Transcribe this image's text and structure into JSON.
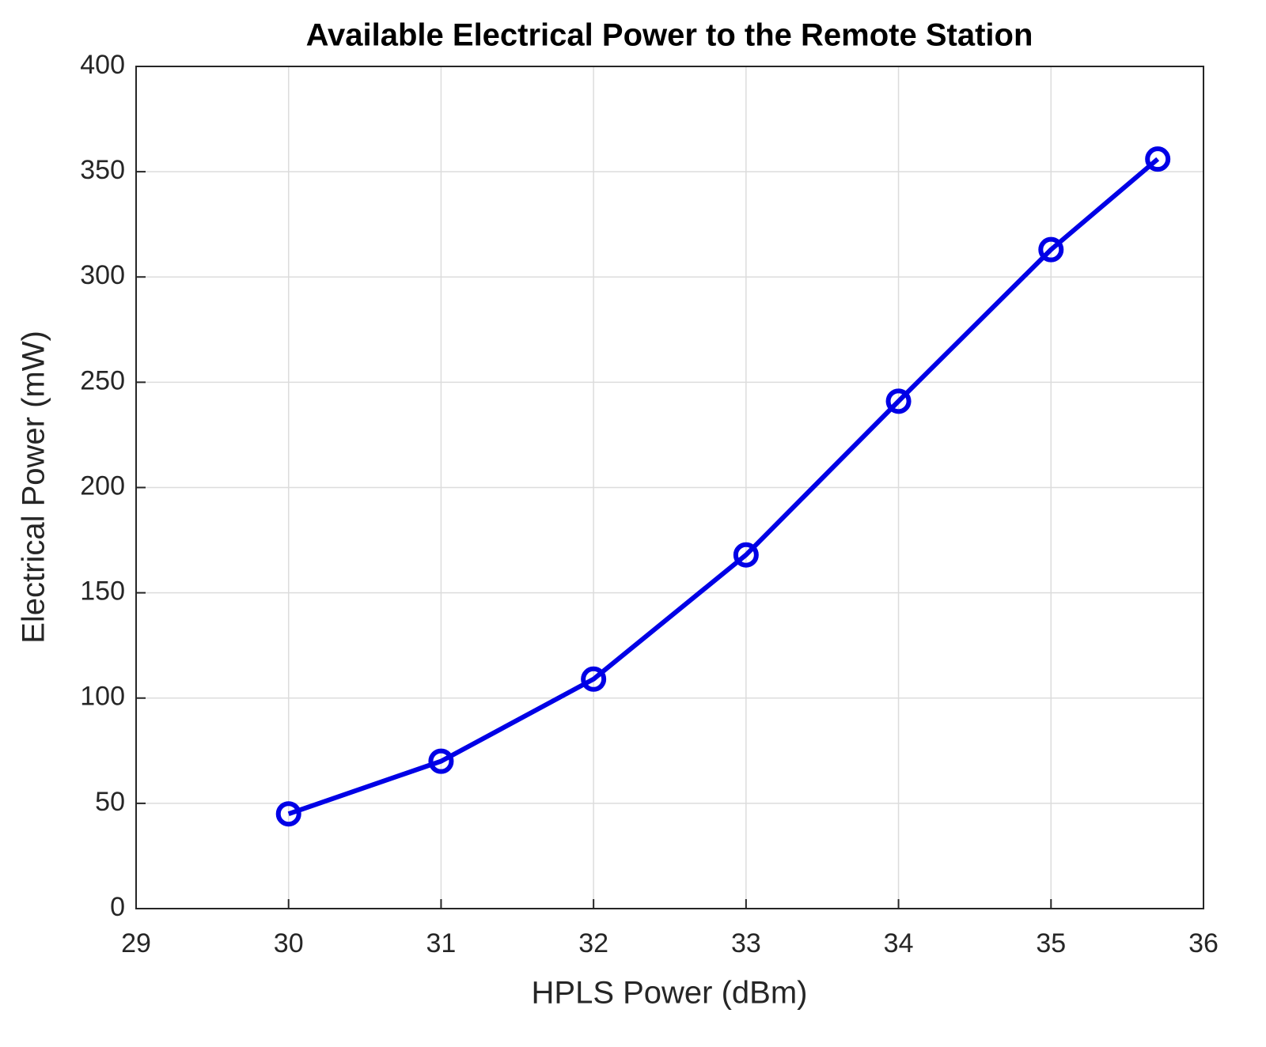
{
  "chart_data": {
    "type": "line",
    "title": "Available Electrical Power to the Remote Station",
    "x_label": "HPLS Power (dBm)",
    "y_label": "Electrical Power (mW)",
    "x": [
      30,
      31,
      32,
      33,
      34,
      35,
      35.7
    ],
    "values": [
      45,
      70,
      109,
      168,
      241,
      313,
      356
    ],
    "color": "#0000e6",
    "marker": "circle",
    "xlim": [
      29,
      36
    ],
    "xticks": [
      29,
      30,
      31,
      32,
      33,
      34,
      35,
      36
    ],
    "ylim": [
      0,
      400
    ],
    "yticks": [
      0,
      50,
      100,
      150,
      200,
      250,
      300,
      350,
      400
    ],
    "grid": true
  }
}
